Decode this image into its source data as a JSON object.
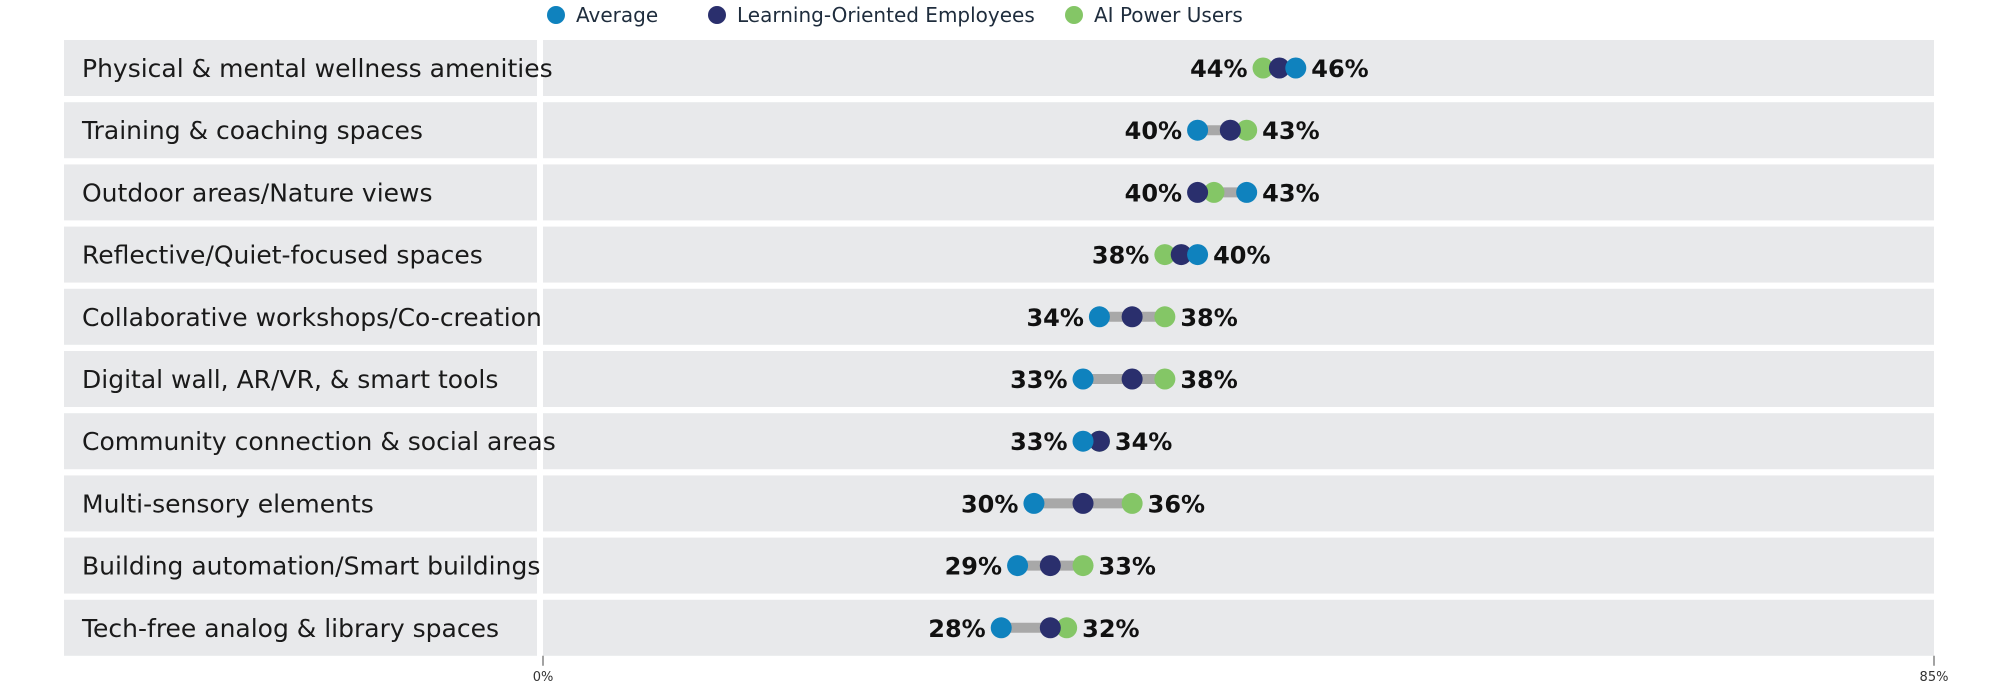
{
  "chart_data": {
    "type": "dumbbell",
    "title": "",
    "xlabel": "",
    "ylabel": "",
    "xlim": [
      0,
      85
    ],
    "x_ticks": [
      {
        "value": 0,
        "label": "0%"
      },
      {
        "value": 85,
        "label": "85%"
      }
    ],
    "legend_position": "top-center",
    "series": [
      {
        "name": "Average",
        "color": "#0f82be"
      },
      {
        "name": "Learning-Oriented Employees",
        "color": "#2a2f6d"
      },
      {
        "name": "AI Power Users",
        "color": "#84c666"
      }
    ],
    "colors": {
      "connector": "#a8a8a8",
      "row_bg": "#e8e9eb",
      "row_gap": "#ffffff"
    },
    "rows": [
      {
        "category": "Physical & mental wellness amenities",
        "values": {
          "Average": 46,
          "Learning-Oriented Employees": 45,
          "AI Power Users": 44
        },
        "min_label": "44%",
        "max_label": "46%"
      },
      {
        "category": "Training & coaching spaces",
        "values": {
          "Average": 40,
          "Learning-Oriented Employees": 42,
          "AI Power Users": 43
        },
        "min_label": "40%",
        "max_label": "43%"
      },
      {
        "category": "Outdoor areas/Nature views",
        "values": {
          "Average": 43,
          "Learning-Oriented Employees": 40,
          "AI Power Users": 41
        },
        "min_label": "40%",
        "max_label": "43%"
      },
      {
        "category": "Reflective/Quiet-focused spaces",
        "values": {
          "Average": 40,
          "Learning-Oriented Employees": 39,
          "AI Power Users": 38
        },
        "min_label": "38%",
        "max_label": "40%"
      },
      {
        "category": "Collaborative workshops/Co-creation",
        "values": {
          "Average": 34,
          "Learning-Oriented Employees": 36,
          "AI Power Users": 38
        },
        "min_label": "34%",
        "max_label": "38%"
      },
      {
        "category": "Digital wall, AR/VR, & smart tools",
        "values": {
          "Average": 33,
          "Learning-Oriented Employees": 36,
          "AI Power Users": 38
        },
        "min_label": "33%",
        "max_label": "38%"
      },
      {
        "category": "Community connection & social areas",
        "values": {
          "Average": 33,
          "Learning-Oriented Employees": 34,
          "AI Power Users": 34
        },
        "min_label": "33%",
        "max_label": "34%"
      },
      {
        "category": "Multi-sensory elements",
        "values": {
          "Average": 30,
          "Learning-Oriented Employees": 33,
          "AI Power Users": 36
        },
        "min_label": "30%",
        "max_label": "36%"
      },
      {
        "category": "Building automation/Smart buildings",
        "values": {
          "Average": 29,
          "Learning-Oriented Employees": 31,
          "AI Power Users": 33
        },
        "min_label": "29%",
        "max_label": "33%"
      },
      {
        "category": "Tech-free analog & library spaces",
        "values": {
          "Average": 28,
          "Learning-Oriented Employees": 31,
          "AI Power Users": 32
        },
        "min_label": "28%",
        "max_label": "32%"
      }
    ]
  }
}
